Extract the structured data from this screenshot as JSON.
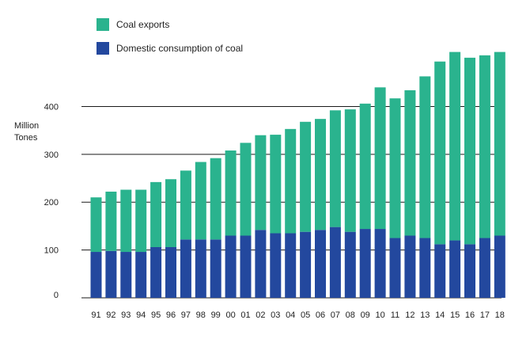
{
  "chart_data": {
    "type": "bar",
    "stacked": true,
    "title": "",
    "xlabel": "",
    "ylabel_lines": [
      "Million",
      "Tones"
    ],
    "ylim": [
      0,
      520
    ],
    "yticks": [
      0,
      100,
      200,
      300,
      400
    ],
    "grid": "horizontal",
    "legend_position": "top-left",
    "categories": [
      "91",
      "92",
      "93",
      "94",
      "95",
      "96",
      "97",
      "98",
      "99",
      "00",
      "01",
      "02",
      "03",
      "04",
      "05",
      "06",
      "07",
      "08",
      "09",
      "10",
      "11",
      "12",
      "13",
      "14",
      "15",
      "16",
      "17",
      "18"
    ],
    "series": [
      {
        "name": "Domestic consumption of coal",
        "color": "#23489e",
        "values": [
          96,
          98,
          96,
          96,
          106,
          106,
          122,
          122,
          122,
          130,
          130,
          142,
          135,
          135,
          138,
          142,
          148,
          138,
          144,
          144,
          125,
          130,
          125,
          112,
          120,
          112,
          125,
          130
        ]
      },
      {
        "name": "Coal exports",
        "color": "#2ab38e",
        "values": [
          114,
          124,
          130,
          130,
          136,
          142,
          144,
          162,
          170,
          178,
          194,
          198,
          206,
          218,
          230,
          232,
          244,
          256,
          262,
          296,
          292,
          304,
          338,
          382,
          394,
          390,
          382,
          384
        ]
      }
    ]
  }
}
